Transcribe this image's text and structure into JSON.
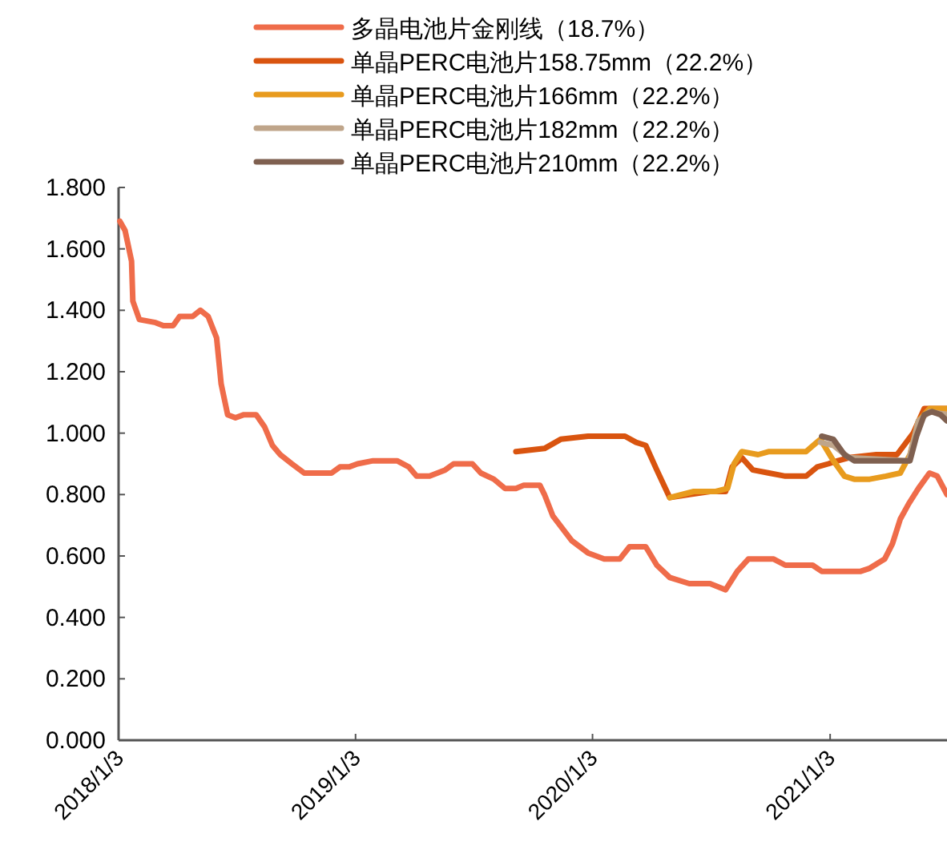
{
  "chart_data": {
    "type": "line",
    "legend": "top",
    "line_style": "solid",
    "marker": "none",
    "grid": false,
    "xlim": [
      "2018-01-03",
      "2021-07-02"
    ],
    "xticks": [
      {
        "value": "2018-01-03",
        "label": "2018/1/3"
      },
      {
        "value": "2019-01-03",
        "label": "2019/1/3"
      },
      {
        "value": "2020-01-03",
        "label": "2020/1/3"
      },
      {
        "value": "2021-01-03",
        "label": "2021/1/3"
      }
    ],
    "ylim": [
      0,
      1.8
    ],
    "yticks": [
      {
        "value": 0,
        "label": "0.000"
      },
      {
        "value": 0.2,
        "label": "0.200"
      },
      {
        "value": 0.4,
        "label": "0.400"
      },
      {
        "value": 0.6,
        "label": "0.600"
      },
      {
        "value": 0.8,
        "label": "0.800"
      },
      {
        "value": 1.0,
        "label": "1.000"
      },
      {
        "value": 1.2,
        "label": "1.200"
      },
      {
        "value": 1.4,
        "label": "1.400"
      },
      {
        "value": 1.6,
        "label": "1.600"
      },
      {
        "value": 1.8,
        "label": "1.800"
      }
    ],
    "series": [
      {
        "name": "多晶电池片金刚线（18.7%）",
        "color": "#ef6c4a",
        "x": [
          "2018-01-05",
          "2018-01-13",
          "2018-01-23",
          "2018-01-25",
          "2018-02-04",
          "2018-03-01",
          "2018-03-13",
          "2018-03-28",
          "2018-04-07",
          "2018-04-27",
          "2018-05-09",
          "2018-05-21",
          "2018-06-03",
          "2018-06-10",
          "2018-06-20",
          "2018-07-02",
          "2018-07-15",
          "2018-08-03",
          "2018-08-16",
          "2018-08-28",
          "2018-09-09",
          "2018-09-27",
          "2018-10-16",
          "2018-11-27",
          "2018-12-10",
          "2018-12-24",
          "2019-01-06",
          "2019-01-30",
          "2019-03-08",
          "2019-03-26",
          "2019-04-07",
          "2019-04-27",
          "2019-05-09",
          "2019-05-21",
          "2019-06-03",
          "2019-07-02",
          "2019-07-15",
          "2019-08-04",
          "2019-08-21",
          "2019-09-07",
          "2019-09-19",
          "2019-10-14",
          "2019-10-21",
          "2019-11-03",
          "2019-12-02",
          "2019-12-27",
          "2020-01-21",
          "2020-02-14",
          "2020-02-29",
          "2020-03-25",
          "2020-04-11",
          "2020-05-01",
          "2020-05-31",
          "2020-07-02",
          "2020-07-26",
          "2020-08-13",
          "2020-08-30",
          "2020-10-08",
          "2020-10-26",
          "2020-12-07",
          "2020-12-21",
          "2021-02-01",
          "2021-02-19",
          "2021-03-05",
          "2021-03-28",
          "2021-04-09",
          "2021-04-21",
          "2021-05-04",
          "2021-05-19",
          "2021-06-05",
          "2021-06-17",
          "2021-07-02"
        ],
        "values": [
          1.69,
          1.66,
          1.56,
          1.43,
          1.37,
          1.36,
          1.35,
          1.35,
          1.38,
          1.38,
          1.4,
          1.38,
          1.31,
          1.16,
          1.06,
          1.05,
          1.06,
          1.06,
          1.02,
          0.96,
          0.93,
          0.9,
          0.87,
          0.87,
          0.89,
          0.89,
          0.9,
          0.91,
          0.91,
          0.89,
          0.86,
          0.86,
          0.87,
          0.88,
          0.9,
          0.9,
          0.87,
          0.85,
          0.82,
          0.82,
          0.83,
          0.83,
          0.8,
          0.73,
          0.65,
          0.61,
          0.59,
          0.59,
          0.63,
          0.63,
          0.57,
          0.53,
          0.51,
          0.51,
          0.49,
          0.55,
          0.59,
          0.59,
          0.57,
          0.57,
          0.55,
          0.55,
          0.55,
          0.56,
          0.59,
          0.64,
          0.72,
          0.77,
          0.82,
          0.87,
          0.86,
          0.8
        ]
      },
      {
        "name": "单晶PERC电池片158.75mm（22.2%）",
        "color": "#d9540f",
        "x": [
          "2019-09-07",
          "2019-10-21",
          "2019-11-15",
          "2019-12-27",
          "2020-02-22",
          "2020-03-10",
          "2020-03-25",
          "2020-04-11",
          "2020-05-01",
          "2020-05-31",
          "2020-07-02",
          "2020-07-26",
          "2020-08-05",
          "2020-08-20",
          "2020-09-06",
          "2020-10-01",
          "2020-10-26",
          "2020-11-27",
          "2020-12-14",
          "2020-12-31",
          "2021-01-15",
          "2021-02-01",
          "2021-03-15",
          "2021-04-16",
          "2021-05-11",
          "2021-05-28",
          "2021-07-02"
        ],
        "values": [
          0.94,
          0.95,
          0.98,
          0.99,
          0.99,
          0.97,
          0.96,
          0.88,
          0.79,
          0.8,
          0.81,
          0.81,
          0.89,
          0.92,
          0.88,
          0.87,
          0.86,
          0.86,
          0.89,
          0.9,
          0.91,
          0.92,
          0.93,
          0.93,
          1.0,
          1.08,
          1.08
        ]
      },
      {
        "name": "单晶PERC电池片166mm（22.2%）",
        "color": "#e89b1e",
        "x": [
          "2020-05-01",
          "2020-06-07",
          "2020-07-11",
          "2020-07-29",
          "2020-08-08",
          "2020-08-20",
          "2020-09-14",
          "2020-10-01",
          "2020-11-27",
          "2020-12-19",
          "2021-01-08",
          "2021-01-25",
          "2021-02-09",
          "2021-03-05",
          "2021-03-30",
          "2021-04-21",
          "2021-05-06",
          "2021-05-19",
          "2021-06-05",
          "2021-07-02"
        ],
        "values": [
          0.79,
          0.81,
          0.81,
          0.82,
          0.9,
          0.94,
          0.93,
          0.94,
          0.94,
          0.98,
          0.91,
          0.86,
          0.85,
          0.85,
          0.86,
          0.87,
          0.93,
          1.04,
          1.08,
          1.08
        ]
      },
      {
        "name": "单晶PERC电池片182mm（22.2%）",
        "color": "#bfa58a",
        "x": [
          "2020-12-19",
          "2021-01-08",
          "2021-02-01",
          "2021-05-04",
          "2021-05-19",
          "2021-06-05",
          "2021-07-02"
        ],
        "values": [
          0.97,
          0.96,
          0.92,
          0.91,
          1.04,
          1.07,
          1.06
        ]
      },
      {
        "name": "单晶PERC电池片210mm（22.2%）",
        "color": "#7f6050",
        "x": [
          "2020-12-21",
          "2021-01-08",
          "2021-01-25",
          "2021-02-09",
          "2021-04-16",
          "2021-05-06",
          "2021-05-16",
          "2021-05-28",
          "2021-06-09",
          "2021-06-22",
          "2021-07-02"
        ],
        "values": [
          0.99,
          0.98,
          0.93,
          0.91,
          0.91,
          0.91,
          0.99,
          1.06,
          1.07,
          1.06,
          1.04
        ]
      }
    ]
  }
}
